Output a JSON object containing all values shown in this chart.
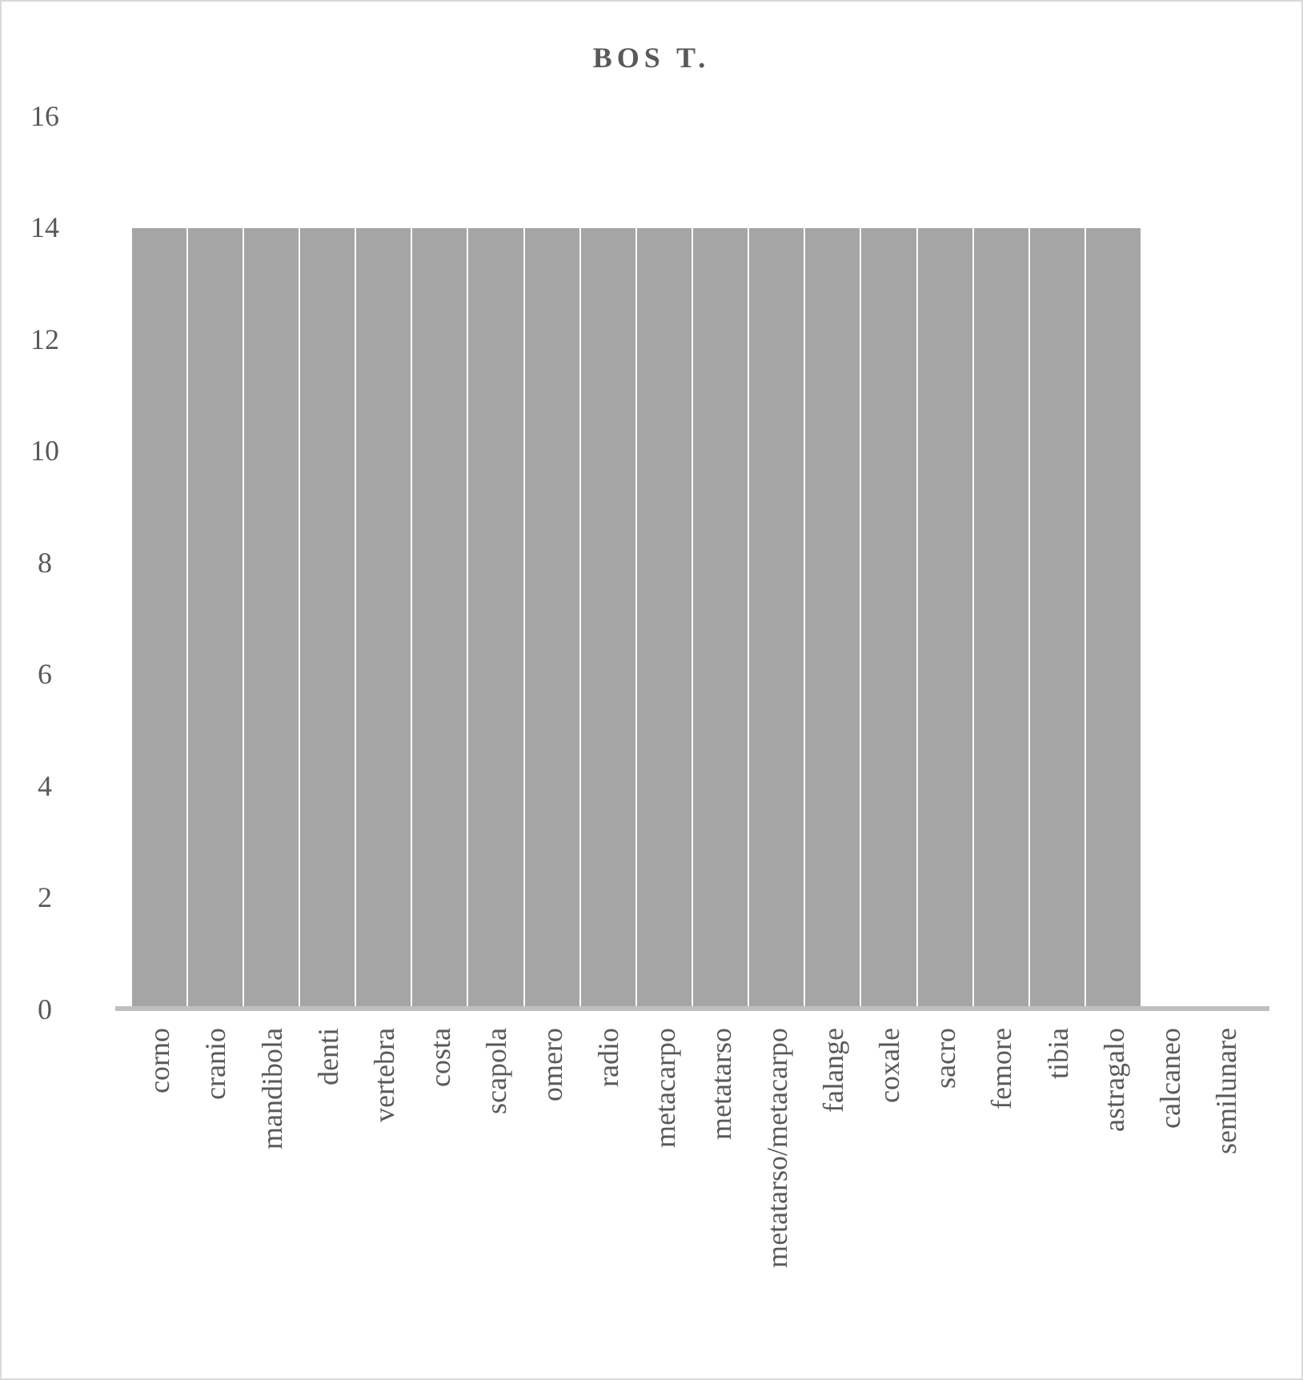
{
  "chart_data": {
    "type": "bar",
    "title": "BOS T.",
    "categories": [
      "corno",
      "cranio",
      "mandibola",
      "denti",
      "vertebra",
      "costa",
      "scapola",
      "omero",
      "radio",
      "metacarpo",
      "metatarso",
      "metatarso/metacarpo",
      "falange",
      "coxale",
      "sacro",
      "femore",
      "tibia",
      "astragalo",
      "calcaneo",
      "semilunare"
    ],
    "values": [
      14,
      14,
      14,
      14,
      14,
      14,
      14,
      14,
      14,
      14,
      14,
      14,
      14,
      14,
      14,
      14,
      14,
      14,
      0,
      0
    ],
    "color": "#a5a5a5",
    "ylim": [
      0,
      16
    ],
    "yticks": [
      0,
      2,
      4,
      6,
      8,
      10,
      12,
      14,
      16
    ],
    "grid": false
  }
}
